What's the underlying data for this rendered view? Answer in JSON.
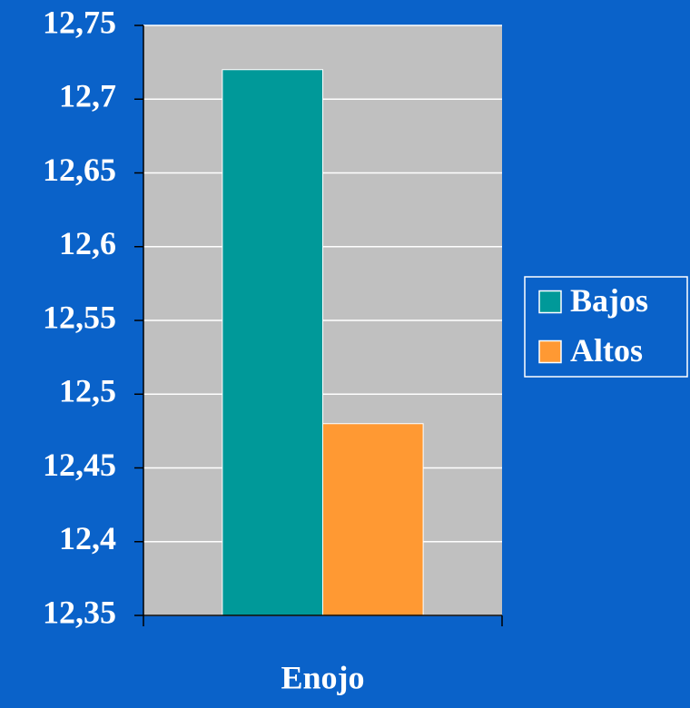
{
  "chart_data": {
    "type": "bar",
    "categories": [
      "Enojo"
    ],
    "series": [
      {
        "name": "Bajos",
        "color": "#009999",
        "values": [
          12.72
        ]
      },
      {
        "name": "Altos",
        "color": "#ff9933",
        "values": [
          12.48
        ]
      }
    ],
    "ylim": [
      12.35,
      12.75
    ],
    "yticks": [
      {
        "value": 12.35,
        "label": "12,35"
      },
      {
        "value": 12.4,
        "label": "12,4"
      },
      {
        "value": 12.45,
        "label": "12,45"
      },
      {
        "value": 12.5,
        "label": "12,5"
      },
      {
        "value": 12.55,
        "label": "12,55"
      },
      {
        "value": 12.6,
        "label": "12,6"
      },
      {
        "value": 12.65,
        "label": "12,65"
      },
      {
        "value": 12.7,
        "label": "12,7"
      },
      {
        "value": 12.75,
        "label": "12,75"
      }
    ],
    "grid": true,
    "legend_position": "right"
  }
}
